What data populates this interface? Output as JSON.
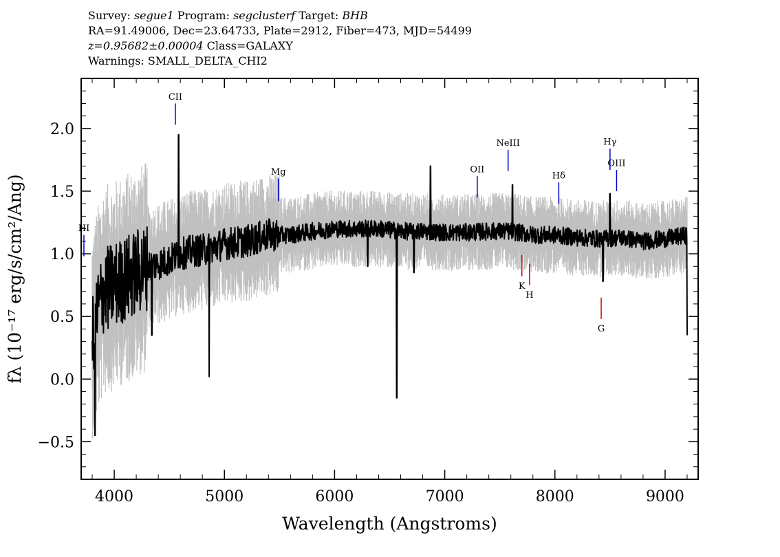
{
  "header": {
    "survey_label": "Survey:",
    "survey": "segue1",
    "program_label": "Program:",
    "program": "segclusterf",
    "target_label": "Target:",
    "target": "BHB",
    "line2": "RA=91.49006, Dec=23.64733, Plate=2912, Fiber=473, MJD=54499",
    "redshift": "z=0.95682±0.00004",
    "class_text": "Class=GALAXY",
    "warnings": "Warnings: SMALL_DELTA_CHI2"
  },
  "chart_data": {
    "type": "line",
    "xlabel": "Wavelength (Angstroms)",
    "ylabel": "fλ (10⁻¹⁷ erg/s/cm²/Ang)",
    "xlim": [
      3700,
      9300
    ],
    "ylim": [
      -0.8,
      2.4
    ],
    "x_ticks": [
      4000,
      5000,
      6000,
      7000,
      8000,
      9000
    ],
    "y_ticks": [
      -0.5,
      0.0,
      0.5,
      1.0,
      1.5,
      2.0
    ],
    "x_tick_labels": [
      "4000",
      "5000",
      "6000",
      "7000",
      "8000",
      "9000"
    ],
    "y_tick_labels": [
      "−0.5",
      "0.0",
      "0.5",
      "1.0",
      "1.5",
      "2.0"
    ],
    "colors": {
      "flux": "#000000",
      "error_band": "#c0c0c0",
      "emission": "#0000cc",
      "absorption": "#cc0000"
    },
    "series": [
      {
        "style": "grey error envelope (noisy spectrum)",
        "x": [
          3800,
          3850,
          3900,
          4000,
          4100,
          4200,
          4300,
          4400,
          4500,
          4600,
          4700,
          4800,
          4900,
          5000,
          5200,
          5400,
          5600,
          5800,
          6000,
          6200,
          6400,
          6600,
          6800,
          7000,
          7200,
          7400,
          7600,
          7800,
          8000,
          8200,
          8400,
          8600,
          8800,
          9000,
          9200
        ],
        "values": [
          0.35,
          0.55,
          0.7,
          0.75,
          0.8,
          0.85,
          0.9,
          0.92,
          0.95,
          1.0,
          1.02,
          1.03,
          1.05,
          1.08,
          1.1,
          1.15,
          1.15,
          1.18,
          1.2,
          1.2,
          1.2,
          1.18,
          1.18,
          1.17,
          1.17,
          1.18,
          1.18,
          1.15,
          1.15,
          1.13,
          1.12,
          1.13,
          1.1,
          1.12,
          1.15
        ]
      },
      {
        "style": "black smoothed flux",
        "x": [
          3800,
          3850,
          3900,
          4000,
          4100,
          4200,
          4300,
          4400,
          4500,
          4600,
          4700,
          4800,
          4900,
          5000,
          5200,
          5400,
          5600,
          5800,
          6000,
          6200,
          6400,
          6600,
          6800,
          7000,
          7200,
          7400,
          7600,
          7800,
          8000,
          8200,
          8400,
          8600,
          8800,
          9000,
          9200
        ],
        "values": [
          0.35,
          0.55,
          0.7,
          0.75,
          0.8,
          0.85,
          0.9,
          0.92,
          0.95,
          1.0,
          1.02,
          1.03,
          1.05,
          1.08,
          1.1,
          1.15,
          1.15,
          1.18,
          1.2,
          1.2,
          1.2,
          1.18,
          1.18,
          1.17,
          1.17,
          1.18,
          1.18,
          1.15,
          1.15,
          1.13,
          1.12,
          1.13,
          1.1,
          1.12,
          1.15
        ]
      }
    ],
    "features": [
      {
        "x": 6565,
        "y": -0.15
      },
      {
        "x": 4862,
        "y": 0.02
      },
      {
        "x": 4342,
        "y": 0.35
      },
      {
        "x": 6300,
        "y": 0.9
      },
      {
        "x": 6720,
        "y": 0.85
      },
      {
        "x": 3825,
        "y": -0.45
      },
      {
        "x": 4585,
        "y": 1.95
      },
      {
        "x": 6870,
        "y": 1.7
      },
      {
        "x": 7615,
        "y": 1.55
      },
      {
        "x": 8500,
        "y": 1.48
      },
      {
        "x": 8437,
        "y": 0.78
      },
      {
        "x": 9200,
        "y": 0.35
      }
    ],
    "line_labels": [
      {
        "label": "CII",
        "x": 4555,
        "tick_y": [
          2.2,
          2.03
        ],
        "label_y": 2.22,
        "kind": "emission"
      },
      {
        "label": "Mg",
        "x": 5490,
        "tick_y": [
          1.6,
          1.42
        ],
        "label_y": 1.62,
        "kind": "emission"
      },
      {
        "label": "OII",
        "x": 7295,
        "tick_y": [
          1.62,
          1.45
        ],
        "label_y": 1.64,
        "kind": "emission"
      },
      {
        "label": "NeIII",
        "x": 7575,
        "tick_y": [
          1.83,
          1.66
        ],
        "label_y": 1.85,
        "kind": "emission"
      },
      {
        "label": "Hδ",
        "x": 8035,
        "tick_y": [
          1.57,
          1.4
        ],
        "label_y": 1.59,
        "kind": "emission"
      },
      {
        "label": "Hγ",
        "x": 8500,
        "tick_y": [
          1.84,
          1.67
        ],
        "label_y": 1.86,
        "kind": "emission"
      },
      {
        "label": "OIII",
        "x": 8560,
        "tick_y": [
          1.67,
          1.5
        ],
        "label_y": 1.69,
        "kind": "emission"
      },
      {
        "label": "HI",
        "x": 3720,
        "tick_y": [
          1.15,
          0.98
        ],
        "label_y": 1.17,
        "kind": "emission"
      },
      {
        "label": "K",
        "x": 7700,
        "tick_y": [
          0.99,
          0.82
        ],
        "label_y": 0.72,
        "kind": "absorption"
      },
      {
        "label": "H",
        "x": 7770,
        "tick_y": [
          0.92,
          0.75
        ],
        "label_y": 0.65,
        "kind": "absorption"
      },
      {
        "label": "G",
        "x": 8420,
        "tick_y": [
          0.65,
          0.48
        ],
        "label_y": 0.38,
        "kind": "absorption"
      }
    ]
  }
}
